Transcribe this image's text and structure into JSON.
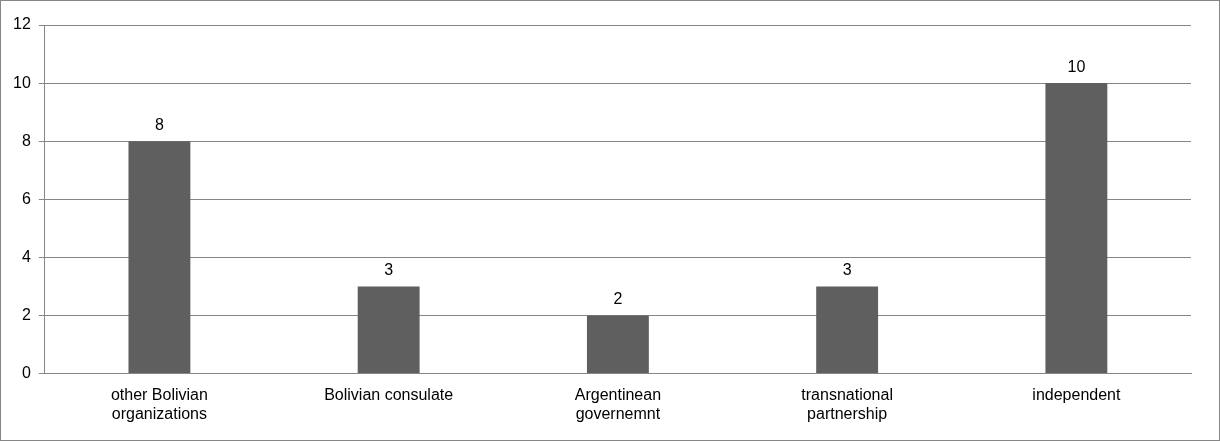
{
  "chart_data": {
    "type": "bar",
    "categories": [
      "other Bolivian organizations",
      "Bolivian consulate",
      "Argentinean governemnt",
      "transnational partnership",
      "independent"
    ],
    "values": [
      8,
      3,
      2,
      3,
      10
    ],
    "color": "#5f5f5f",
    "ylim": [
      0,
      12
    ],
    "yticks": [
      0,
      2,
      4,
      6,
      8,
      10,
      12
    ],
    "grid": "y",
    "legend": false,
    "data_labels": true
  }
}
